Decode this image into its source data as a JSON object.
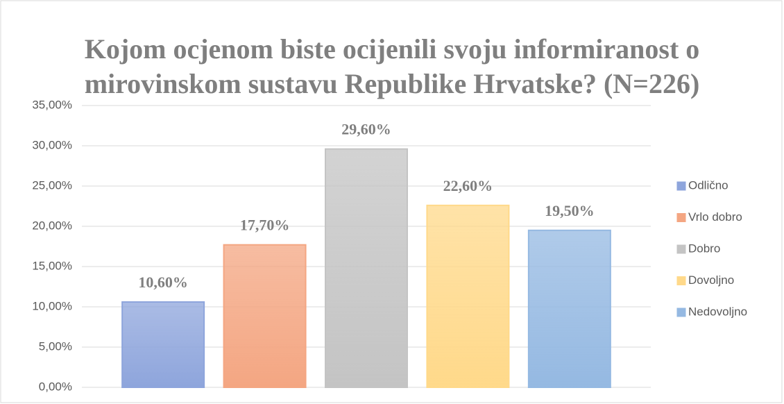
{
  "chart_data": {
    "type": "bar",
    "title": [
      "Kojom ocjenom biste ocijenili svoju informiranost o",
      "mirovinskom sustavu Republike Hrvatske? (N=226)"
    ],
    "series": [
      {
        "name": "Odlično",
        "color": "#8ea5dc",
        "values": [
          10.6
        ],
        "value_labels": [
          "10,60%"
        ]
      },
      {
        "name": "Vrlo dobro",
        "color": "#f4a682",
        "values": [
          17.7
        ],
        "value_labels": [
          "17,70%"
        ]
      },
      {
        "name": "Dobro",
        "color": "#c4c4c4",
        "values": [
          29.6
        ],
        "value_labels": [
          "29,60%"
        ]
      },
      {
        "name": "Dovoljno",
        "color": "#ffd98a",
        "values": [
          22.6
        ],
        "value_labels": [
          "22,60%"
        ]
      },
      {
        "name": "Nedovoljno",
        "color": "#95b9e2",
        "values": [
          19.5
        ],
        "value_labels": [
          "19,50%"
        ]
      }
    ],
    "ylim": [
      0,
      35
    ],
    "yticks": [
      {
        "value": 0,
        "label": "0,00%"
      },
      {
        "value": 5,
        "label": "5,00%"
      },
      {
        "value": 10,
        "label": "10,00%"
      },
      {
        "value": 15,
        "label": "15,00%"
      },
      {
        "value": 20,
        "label": "20,00%"
      },
      {
        "value": 25,
        "label": "25,00%"
      },
      {
        "value": 30,
        "label": "30,00%"
      },
      {
        "value": 35,
        "label": "35,00%"
      }
    ],
    "grid": true,
    "legend": "right"
  }
}
